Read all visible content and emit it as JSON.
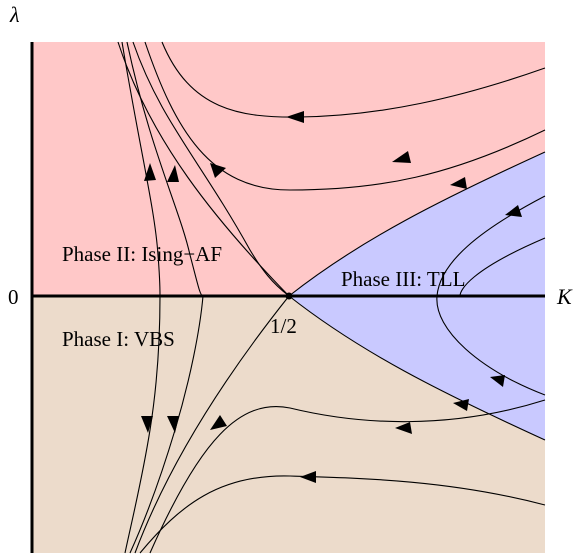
{
  "axes": {
    "x_label": "K",
    "y_label": "λ",
    "origin_label": "0",
    "fixed_point_label": "1/2"
  },
  "phases": {
    "phase_1": "Phase I: VBS",
    "phase_2": "Phase II: Ising−AF",
    "phase_3": "Phase III: TLL"
  },
  "colors": {
    "phase_1_fill": "#ecdbcb",
    "phase_2_fill": "#ffc8c8",
    "phase_3_fill": "#c9c9ff",
    "line": "#000000"
  },
  "flow": {
    "arrow_direction": "toward negative K (leftward); vertical flow away from the λ = 0 axis"
  }
}
